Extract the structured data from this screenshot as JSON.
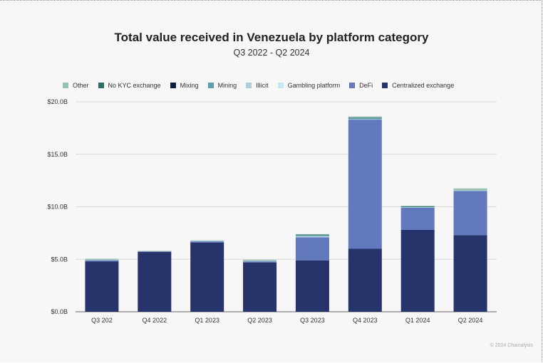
{
  "credit": "© 2024 Chainalysis",
  "chart_data": {
    "type": "bar",
    "stacked": true,
    "title": "Total value received in Venezuela by platform category",
    "subtitle": "Q3 2022 - Q2 2024",
    "xlabel": "",
    "ylabel": "",
    "categories": [
      "Q3 202",
      "Q4 2022",
      "Q1 2023",
      "Q2 2023",
      "Q3 2023",
      "Q4 2023",
      "Q1 2024",
      "Q2 2024"
    ],
    "yticks": [
      "$0.0B",
      "$5.0B",
      "$10.0B",
      "$15.0B",
      "$20.0B"
    ],
    "ylim": [
      0,
      20
    ],
    "grid": true,
    "legend_position": "top",
    "series": [
      {
        "name": "Centralized exchange",
        "color": "#27346b",
        "values": [
          4.8,
          5.7,
          6.6,
          4.7,
          4.9,
          6.0,
          7.8,
          7.3
        ]
      },
      {
        "name": "DeFi",
        "color": "#6279be",
        "values": [
          0.1,
          0.05,
          0.1,
          0.1,
          2.2,
          12.3,
          2.1,
          4.2
        ]
      },
      {
        "name": "Gambling platform",
        "color": "#c9e6f4",
        "values": [
          0.0,
          0.0,
          0.0,
          0.0,
          0.05,
          0.0,
          0.0,
          0.0
        ]
      },
      {
        "name": "Illicit",
        "color": "#a9cfd9",
        "values": [
          0.05,
          0.0,
          0.05,
          0.05,
          0.05,
          0.05,
          0.05,
          0.05
        ]
      },
      {
        "name": "Mining",
        "color": "#5c9fa7",
        "values": [
          0.0,
          0.0,
          0.0,
          0.0,
          0.1,
          0.1,
          0.05,
          0.0
        ]
      },
      {
        "name": "Mixing",
        "color": "#0f1d3f",
        "values": [
          0.0,
          0.0,
          0.0,
          0.0,
          0.0,
          0.0,
          0.0,
          0.0
        ]
      },
      {
        "name": "No KYC exchange",
        "color": "#2f6f66",
        "values": [
          0.0,
          0.0,
          0.0,
          0.0,
          0.05,
          0.05,
          0.05,
          0.0
        ]
      },
      {
        "name": "Other",
        "color": "#98c2b6",
        "values": [
          0.1,
          0.05,
          0.05,
          0.1,
          0.05,
          0.1,
          0.05,
          0.2
        ]
      }
    ],
    "legend_order": [
      "Other",
      "No KYC exchange",
      "Mixing",
      "Mining",
      "Illicit",
      "Gambling platform",
      "DeFi",
      "Centralized exchange"
    ]
  }
}
